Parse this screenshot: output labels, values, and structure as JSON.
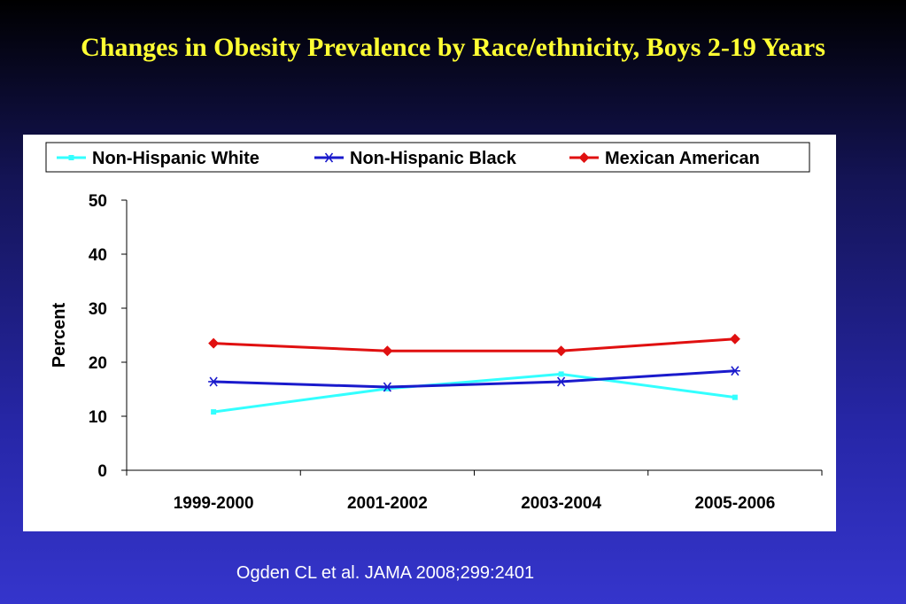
{
  "slide": {
    "title": "Changes in Obesity Prevalence by Race/ethnicity, Boys 2-19 Years",
    "citation": "Ogden CL et al. JAMA 2008;299:2401"
  },
  "chart_data": {
    "type": "line",
    "title": "",
    "xlabel": "",
    "ylabel": "Percent",
    "categories": [
      "1999-2000",
      "2001-2002",
      "2003-2004",
      "2005-2006"
    ],
    "ylim": [
      0,
      50
    ],
    "yticks": [
      0,
      10,
      20,
      30,
      40,
      50
    ],
    "grid": false,
    "legend_position": "top",
    "series": [
      {
        "name": "Non-Hispanic White",
        "color": "#33ffff",
        "marker": "square",
        "values": [
          10.8,
          15.1,
          17.8,
          13.5
        ]
      },
      {
        "name": "Non-Hispanic Black",
        "color": "#1a1acc",
        "marker": "asterisk",
        "values": [
          16.4,
          15.4,
          16.4,
          18.4
        ]
      },
      {
        "name": "Mexican American",
        "color": "#e01010",
        "marker": "diamond",
        "values": [
          23.5,
          22.1,
          22.1,
          24.3
        ]
      }
    ]
  }
}
